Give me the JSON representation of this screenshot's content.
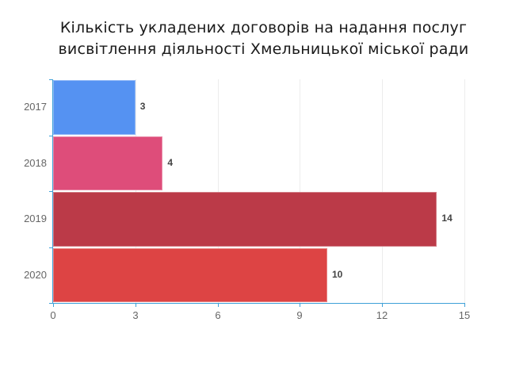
{
  "chart_data": {
    "type": "bar",
    "orientation": "horizontal",
    "title": "Кількість укладених договорів на надання послуг висвітлення діяльності Хмельницької міської ради",
    "title_lines": [
      "Кількість укладених договорів на надання послуг",
      "висвітлення діяльності Хмельницької міської ради"
    ],
    "categories": [
      "2017",
      "2018",
      "2019",
      "2020"
    ],
    "values": [
      3,
      4,
      14,
      10
    ],
    "colors": [
      "#5592f2",
      "#de4d7a",
      "#bb3a48",
      "#dd4444"
    ],
    "xlabel": "",
    "ylabel": "",
    "xlim": [
      0,
      15
    ],
    "xticks": [
      "0",
      "3",
      "6",
      "9",
      "12",
      "15"
    ],
    "grid": true,
    "legend": null,
    "data_labels": true
  }
}
